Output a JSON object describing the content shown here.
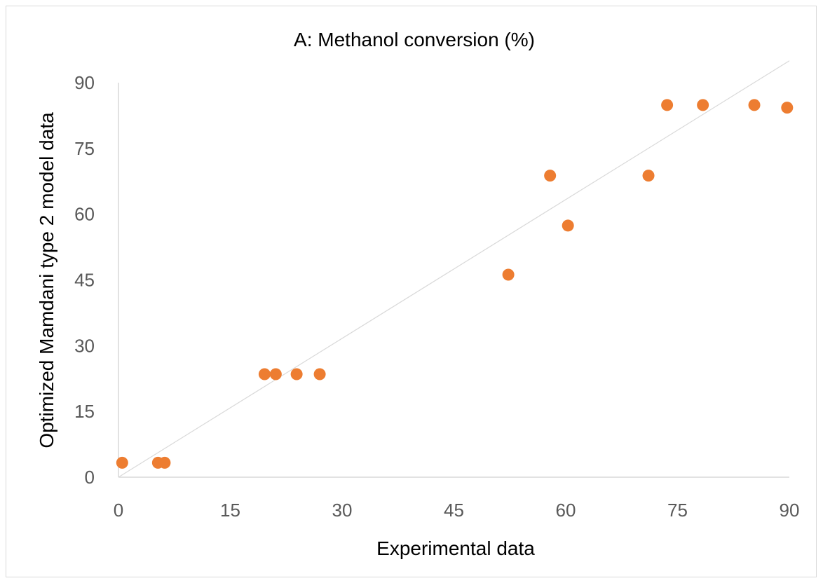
{
  "chart_data": {
    "type": "scatter",
    "title": "A: Methanol conversion (%)",
    "xlabel": "Experimental data",
    "ylabel": "Optimized Mamdani type 2 model data",
    "xlim": [
      0,
      90
    ],
    "ylim": [
      0,
      90
    ],
    "x_ticks": [
      "0",
      "15",
      "30",
      "45",
      "60",
      "75",
      "90"
    ],
    "y_ticks": [
      "0",
      "15",
      "30",
      "45",
      "60",
      "75",
      "90"
    ],
    "grid": false,
    "legend": "none",
    "marker_color": "#ED7D31",
    "trendline_color": "#D9D9D9",
    "trendline": {
      "x": [
        0,
        90
      ],
      "y": [
        0,
        95
      ]
    },
    "points": [
      {
        "x": 0.5,
        "y": 3.3
      },
      {
        "x": 5.3,
        "y": 3.3
      },
      {
        "x": 6.2,
        "y": 3.3
      },
      {
        "x": 19.6,
        "y": 23.5
      },
      {
        "x": 21.1,
        "y": 23.5
      },
      {
        "x": 23.9,
        "y": 23.5
      },
      {
        "x": 27.0,
        "y": 23.5
      },
      {
        "x": 52.3,
        "y": 46.2
      },
      {
        "x": 57.9,
        "y": 68.8
      },
      {
        "x": 60.3,
        "y": 57.4
      },
      {
        "x": 71.1,
        "y": 68.8
      },
      {
        "x": 73.6,
        "y": 84.9
      },
      {
        "x": 78.4,
        "y": 84.9
      },
      {
        "x": 85.3,
        "y": 84.9
      },
      {
        "x": 89.7,
        "y": 84.3
      }
    ]
  }
}
